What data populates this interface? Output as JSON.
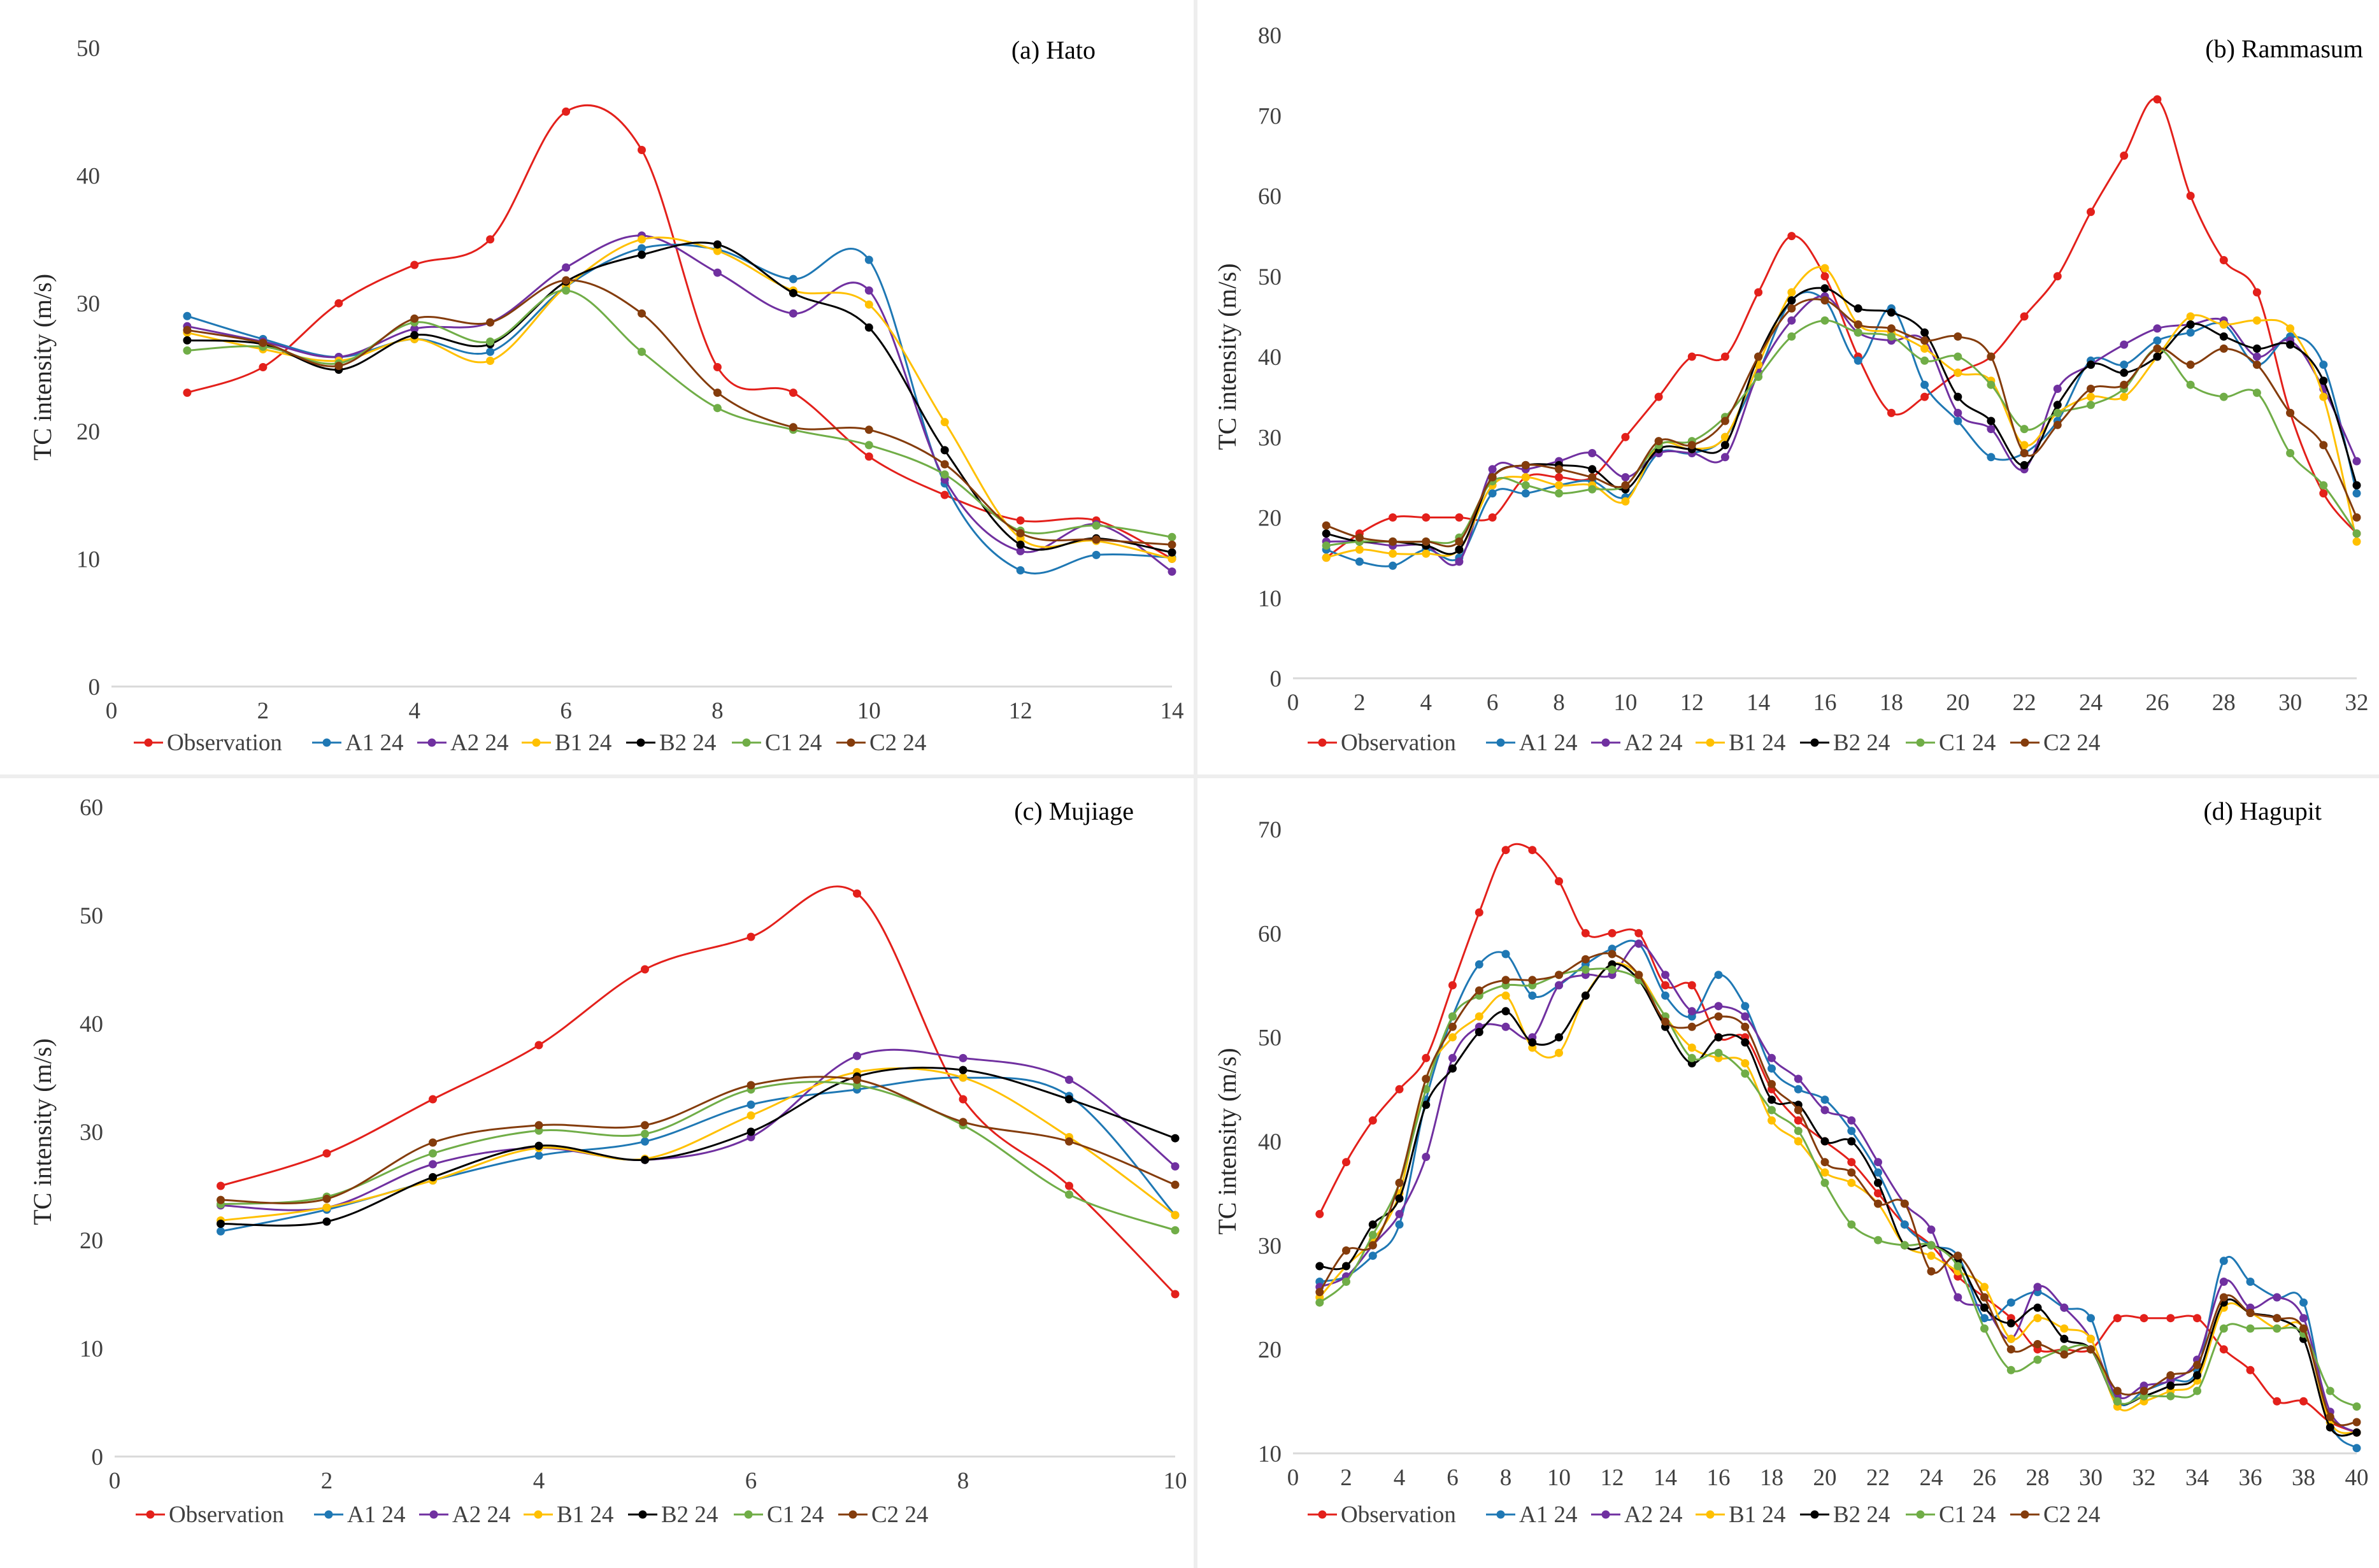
{
  "chart_data": [
    {
      "type": "line",
      "title": "(a) Hato",
      "ylabel": "TC intensity (m/s)",
      "xlabel": "",
      "xlim": [
        0,
        14
      ],
      "ylim": [
        0,
        50
      ],
      "xticks": [
        0,
        2,
        4,
        6,
        8,
        10,
        12,
        14
      ],
      "yticks": [
        0,
        10,
        20,
        30,
        40,
        50
      ],
      "x": [
        1,
        2,
        3,
        4,
        5,
        6,
        7,
        8,
        9,
        10,
        11,
        12,
        13,
        14
      ],
      "legend_position": "bottom",
      "series": [
        {
          "name": "Observation",
          "color": "#e3201b",
          "values": [
            23,
            25,
            30,
            33,
            35,
            45,
            42,
            25,
            23,
            18,
            15,
            13,
            13,
            10
          ]
        },
        {
          "name": "A1 24",
          "color": "#1f78b4",
          "values": [
            29,
            27.2,
            25.8,
            27.2,
            26.2,
            31.3,
            34.3,
            34.2,
            31.9,
            33.4,
            15.9,
            9.1,
            10.3,
            10.1
          ]
        },
        {
          "name": "A2 24",
          "color": "#7030a0",
          "values": [
            28.2,
            27,
            25.8,
            28,
            28.5,
            32.8,
            35.3,
            32.4,
            29.2,
            31,
            16.2,
            10.6,
            12.7,
            9
          ]
        },
        {
          "name": "B1 24",
          "color": "#ffc000",
          "values": [
            27.7,
            26.4,
            25.5,
            27.2,
            25.5,
            31.3,
            35,
            34.1,
            31,
            29.9,
            20.7,
            11.6,
            11.4,
            10
          ]
        },
        {
          "name": "B2 24",
          "color": "#000000",
          "values": [
            27.1,
            26.8,
            24.8,
            27.5,
            26.8,
            31.7,
            33.8,
            34.6,
            30.8,
            28.1,
            18.5,
            11.1,
            11.6,
            10.5
          ]
        },
        {
          "name": "C1 24",
          "color": "#70ad47",
          "values": [
            26.3,
            26.6,
            25.3,
            28.5,
            27,
            31,
            26.2,
            21.8,
            20.1,
            18.9,
            16.6,
            12.2,
            12.6,
            11.7
          ]
        },
        {
          "name": "C2 24",
          "color": "#843c0c",
          "values": [
            27.9,
            26.9,
            25.1,
            28.8,
            28.5,
            31.8,
            29.2,
            23,
            20.3,
            20.1,
            17.4,
            12,
            11.5,
            11.1
          ]
        }
      ]
    },
    {
      "type": "line",
      "title": "(b) Rammasum",
      "ylabel": "TC intensity (m/s)",
      "xlabel": "",
      "xlim": [
        0,
        32
      ],
      "ylim": [
        0,
        80
      ],
      "xticks": [
        0,
        2,
        4,
        6,
        8,
        10,
        12,
        14,
        16,
        18,
        20,
        22,
        24,
        26,
        28,
        30,
        32
      ],
      "yticks": [
        0,
        10,
        20,
        30,
        40,
        50,
        60,
        70,
        80
      ],
      "x": [
        1,
        2,
        3,
        4,
        5,
        6,
        7,
        8,
        9,
        10,
        11,
        12,
        13,
        14,
        15,
        16,
        17,
        18,
        19,
        20,
        21,
        22,
        23,
        24,
        25,
        26,
        27,
        28,
        29,
        30,
        31,
        32
      ],
      "legend_position": "bottom",
      "series": [
        {
          "name": "Observation",
          "color": "#e3201b",
          "values": [
            15,
            18,
            20,
            20,
            20,
            20,
            25,
            25,
            25,
            30,
            35,
            40,
            40,
            48,
            55,
            50,
            40,
            33,
            35,
            38,
            40,
            45,
            50,
            58,
            65,
            72,
            60,
            52,
            48,
            33,
            23,
            18
          ]
        },
        {
          "name": "A1 24",
          "color": "#1f78b4",
          "values": [
            16,
            14.5,
            14,
            16,
            15,
            23,
            23,
            24,
            24.5,
            22.5,
            28,
            28,
            30,
            38,
            47,
            47,
            39.5,
            46,
            36.5,
            32,
            27.5,
            28,
            32,
            39.5,
            39,
            42,
            43,
            44,
            39,
            42.5,
            39,
            23
          ]
        },
        {
          "name": "A2 24",
          "color": "#7030a0",
          "values": [
            17,
            17,
            16.5,
            16.5,
            14.5,
            26,
            26,
            27,
            28,
            25,
            28,
            28,
            27.5,
            38,
            44.5,
            47.5,
            43,
            42,
            42,
            33,
            31,
            26,
            36,
            39,
            41.5,
            43.5,
            44,
            44.5,
            40,
            42,
            36,
            27
          ]
        },
        {
          "name": "B1 24",
          "color": "#ffc000",
          "values": [
            15,
            16,
            15.5,
            15.5,
            16,
            24,
            25,
            24,
            24,
            22,
            29,
            28.5,
            30,
            39,
            48,
            51,
            44,
            43,
            41,
            38,
            37,
            29,
            33,
            35,
            35,
            40,
            45,
            44,
            44.5,
            43.5,
            35,
            17
          ]
        },
        {
          "name": "B2 24",
          "color": "#000000",
          "values": [
            18,
            17,
            17,
            16.5,
            16,
            25,
            26.5,
            26.5,
            26,
            23.5,
            28.5,
            28.5,
            29,
            40,
            47,
            48.5,
            46,
            45.5,
            43,
            35,
            32,
            26.5,
            34,
            39,
            38,
            40,
            44,
            42.5,
            41,
            41.5,
            37,
            24
          ]
        },
        {
          "name": "C1 24",
          "color": "#70ad47",
          "values": [
            16.5,
            17,
            17,
            17,
            17.5,
            24.5,
            24,
            23,
            23.5,
            24,
            29,
            29.5,
            32.5,
            37.5,
            42.5,
            44.5,
            43,
            42.5,
            39.5,
            40,
            36.5,
            31,
            33,
            34,
            36,
            41,
            36.5,
            35,
            35.5,
            28,
            24,
            18
          ]
        },
        {
          "name": "C2 24",
          "color": "#843c0c",
          "values": [
            19,
            17.5,
            17,
            17,
            17,
            25,
            26.5,
            26,
            25,
            24,
            29.5,
            29,
            32,
            40,
            46,
            47,
            44,
            43.5,
            42,
            42.5,
            40,
            28,
            31.5,
            36,
            36.5,
            41,
            39,
            41,
            39,
            33,
            29,
            20
          ]
        }
      ]
    },
    {
      "type": "line",
      "title": "(c) Mujiage",
      "ylabel": "TC intensity (m/s)",
      "xlabel": "",
      "xlim": [
        0,
        10
      ],
      "ylim": [
        0,
        60
      ],
      "xticks": [
        0,
        2,
        4,
        6,
        8,
        10
      ],
      "yticks": [
        0,
        10,
        20,
        30,
        40,
        50,
        60
      ],
      "x": [
        1,
        2,
        3,
        4,
        5,
        6,
        7,
        8,
        9,
        10
      ],
      "legend_position": "bottom",
      "series": [
        {
          "name": "Observation",
          "color": "#e3201b",
          "values": [
            25,
            28,
            33,
            38,
            45,
            48,
            52,
            33,
            25,
            15
          ]
        },
        {
          "name": "A1 24",
          "color": "#1f78b4",
          "values": [
            20.8,
            22.8,
            25.5,
            27.8,
            29.1,
            32.5,
            33.9,
            35,
            33.3,
            22.3
          ]
        },
        {
          "name": "A2 24",
          "color": "#7030a0",
          "values": [
            23.2,
            23,
            27,
            28.5,
            27.4,
            29.5,
            37,
            36.8,
            34.8,
            26.8
          ]
        },
        {
          "name": "B1 24",
          "color": "#ffc000",
          "values": [
            21.8,
            23,
            25.5,
            28.5,
            27.5,
            31.5,
            35.5,
            35,
            29.5,
            22.3
          ]
        },
        {
          "name": "B2 24",
          "color": "#000000",
          "values": [
            21.5,
            21.7,
            25.8,
            28.7,
            27.4,
            30,
            35.1,
            35.7,
            33,
            29.4
          ]
        },
        {
          "name": "C1 24",
          "color": "#70ad47",
          "values": [
            23.3,
            24,
            28,
            30.1,
            29.8,
            33.9,
            34.3,
            30.6,
            24.2,
            20.9
          ]
        },
        {
          "name": "C2 24",
          "color": "#843c0c",
          "values": [
            23.7,
            23.8,
            29,
            30.6,
            30.6,
            34.3,
            34.8,
            30.9,
            29.1,
            25.1
          ]
        }
      ]
    },
    {
      "type": "line",
      "title": "(d) Hagupit",
      "ylabel": "TC intensity (m/s)",
      "xlabel": "",
      "xlim": [
        0,
        40
      ],
      "ylim": [
        10,
        70
      ],
      "xticks": [
        0,
        2,
        4,
        6,
        8,
        10,
        12,
        14,
        16,
        18,
        20,
        22,
        24,
        26,
        28,
        30,
        32,
        34,
        36,
        38,
        40
      ],
      "yticks": [
        10,
        20,
        30,
        40,
        50,
        60,
        70
      ],
      "x": [
        1,
        2,
        3,
        4,
        5,
        6,
        7,
        8,
        9,
        10,
        11,
        12,
        13,
        14,
        15,
        16,
        17,
        18,
        19,
        20,
        21,
        22,
        23,
        24,
        25,
        26,
        27,
        28,
        29,
        30,
        31,
        32,
        33,
        34,
        35,
        36,
        37,
        38,
        39,
        40
      ],
      "legend_position": "bottom",
      "series": [
        {
          "name": "Observation",
          "color": "#e3201b",
          "values": [
            33,
            38,
            42,
            45,
            48,
            55,
            62,
            68,
            68,
            65,
            60,
            60,
            60,
            55,
            55,
            50,
            50,
            45,
            42,
            40,
            38,
            35,
            32,
            30,
            27,
            25,
            23,
            20,
            20,
            20,
            23,
            23,
            23,
            23,
            20,
            18,
            15,
            15,
            13,
            12
          ]
        },
        {
          "name": "A1 24",
          "color": "#1f78b4",
          "values": [
            26.5,
            27,
            29,
            32,
            44,
            52,
            57,
            58,
            54,
            55,
            57,
            58.5,
            59,
            54,
            52,
            56,
            53,
            47,
            45,
            44,
            41,
            37,
            32,
            30,
            29,
            23,
            24.5,
            25.5,
            24,
            23,
            15,
            16,
            17,
            18,
            28.5,
            26.5,
            25,
            24.5,
            13,
            10.5
          ]
        },
        {
          "name": "A2 24",
          "color": "#7030a0",
          "values": [
            26,
            27,
            30,
            33,
            38.5,
            48,
            51,
            51,
            50,
            55,
            56,
            56,
            59,
            56,
            52.5,
            53,
            52,
            48,
            46,
            43,
            42,
            38,
            34,
            31.5,
            25,
            24,
            21,
            26,
            24,
            21,
            15.5,
            16.5,
            17,
            19,
            26.5,
            24,
            25,
            23,
            14,
            12
          ]
        },
        {
          "name": "B1 24",
          "color": "#ffc000",
          "values": [
            25,
            28,
            30.5,
            35,
            46,
            50,
            52,
            54,
            49,
            48.5,
            54,
            57,
            56,
            52,
            49,
            48,
            47.5,
            42,
            40,
            37,
            36,
            34,
            30,
            29,
            27.5,
            26,
            21,
            23,
            22,
            21,
            14.5,
            15,
            16,
            17,
            24,
            23.5,
            22,
            22,
            13,
            12
          ]
        },
        {
          "name": "B2 24",
          "color": "#000000",
          "values": [
            28,
            28,
            32,
            34.5,
            43.5,
            47,
            50.5,
            52.5,
            49.5,
            50,
            54,
            57,
            55.5,
            51,
            47.5,
            50,
            49.5,
            44,
            43.5,
            40,
            40,
            36,
            30,
            30,
            28.5,
            24,
            22.5,
            24,
            21,
            20,
            15,
            15.5,
            16.5,
            17.5,
            24.5,
            23.5,
            23,
            21,
            12.5,
            12
          ]
        },
        {
          "name": "C1 24",
          "color": "#70ad47",
          "values": [
            24.5,
            26.5,
            31,
            36,
            45,
            52,
            54,
            55,
            55,
            56,
            56.5,
            56.5,
            55.5,
            52,
            48,
            48.5,
            46.5,
            43,
            41,
            36,
            32,
            30.5,
            30,
            30,
            28,
            22,
            18,
            19,
            20,
            20,
            15,
            15.5,
            15.5,
            16,
            22,
            22,
            22,
            21.5,
            16,
            14.5
          ]
        },
        {
          "name": "C2 24",
          "color": "#843c0c",
          "values": [
            25.5,
            29.5,
            30,
            36,
            46,
            51,
            54.5,
            55.5,
            55.5,
            56,
            57.5,
            58,
            56,
            51.5,
            51,
            52,
            51,
            45.5,
            43,
            38,
            37,
            34,
            34,
            27.5,
            29,
            25,
            20,
            20.5,
            19.5,
            20,
            16,
            16,
            17.5,
            18.5,
            25,
            23.5,
            23,
            22,
            13.5,
            13
          ]
        }
      ]
    }
  ]
}
